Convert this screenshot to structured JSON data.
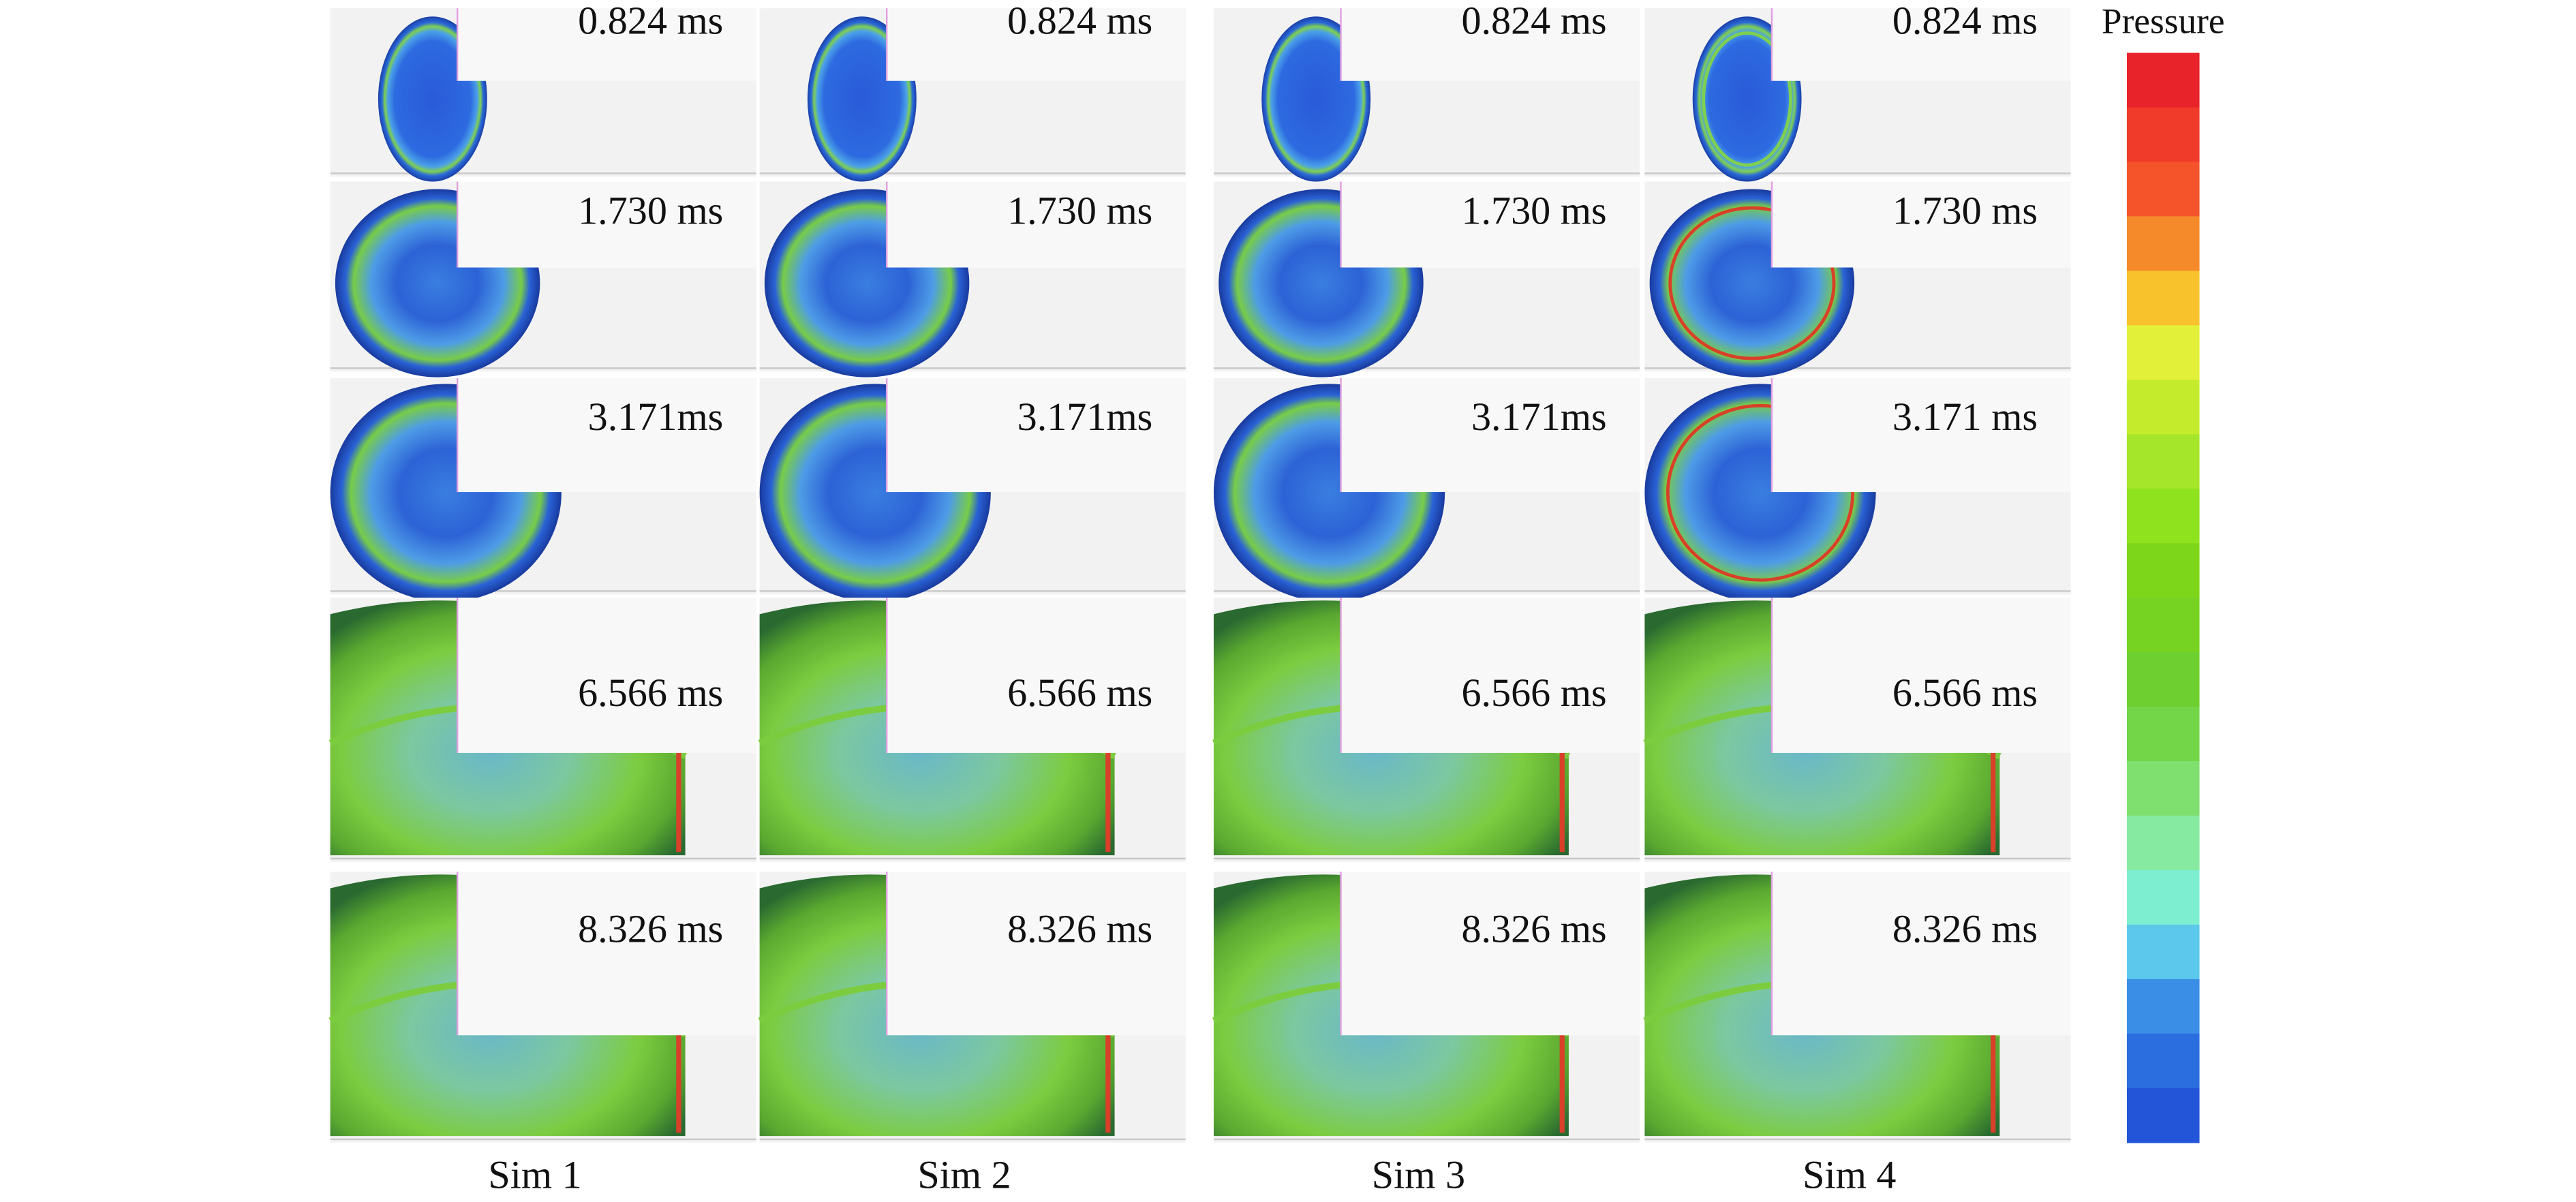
{
  "panels": {
    "times": [
      [
        "0.824 ms",
        "0.824 ms",
        "0.824 ms",
        "0.824 ms"
      ],
      [
        "1.730 ms",
        "1.730 ms",
        "1.730 ms",
        "1.730 ms"
      ],
      [
        "3.171ms",
        "3.171ms",
        "3.171ms",
        "3.171 ms"
      ],
      [
        "6.566 ms",
        "6.566 ms",
        "6.566 ms",
        "6.566 ms"
      ],
      [
        "8.326 ms",
        "8.326 ms",
        "8.326 ms",
        "8.326 ms"
      ]
    ]
  },
  "column_labels": [
    "Sim 1",
    "Sim 2",
    "Sim 3",
    "Sim 4"
  ],
  "colorbar": {
    "title": "Pressure",
    "colors": [
      "#e8232a",
      "#f03a2a",
      "#f5542b",
      "#f58a2a",
      "#f8c22c",
      "#e2f03a",
      "#c4ec2c",
      "#a6e62a",
      "#8fe21e",
      "#7ed61a",
      "#76d321",
      "#6ed030",
      "#72d648",
      "#7fe070",
      "#86eaa0",
      "#7eeed0",
      "#5cc8ec",
      "#3a8ee6",
      "#2a6ee0",
      "#2255d8"
    ]
  }
}
